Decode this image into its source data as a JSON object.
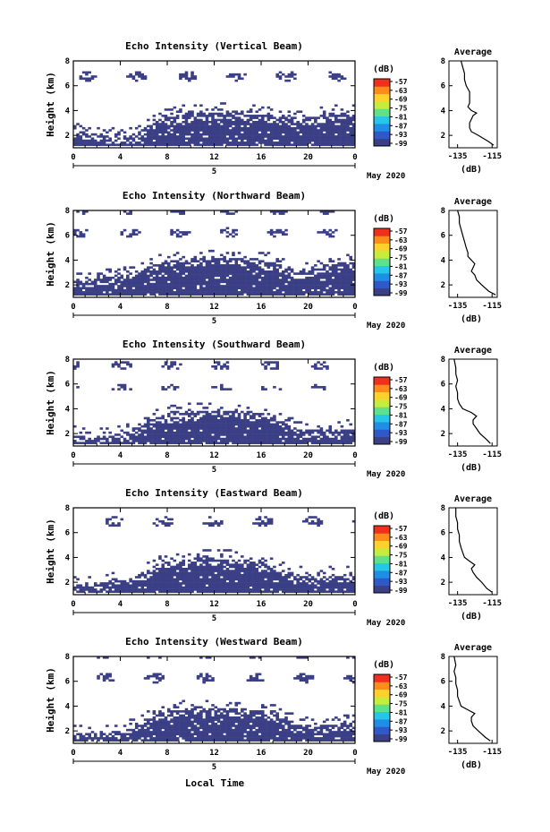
{
  "figure": {
    "xlabel": "Local Time",
    "date_label": "May 2020",
    "day_label": "5",
    "colorbar_unit": "(dB)",
    "profile_title": "Average",
    "profile_xlabel": "(dB)",
    "colors": {
      "echo": "#3b3f85",
      "colormap": [
        "#3b3f85",
        "#2f58c8",
        "#1f8fe6",
        "#25c6e6",
        "#5fe08a",
        "#c7ec3c",
        "#ffd22b",
        "#ff8c1a",
        "#f0301e"
      ]
    }
  },
  "chart_data": [
    {
      "type": "heatmap",
      "title": "Echo Intensity (Vertical Beam)",
      "ylabel": "Height (km)",
      "xlim": [
        0,
        24
      ],
      "ylim": [
        1,
        8
      ],
      "x_ticks": [
        "0",
        "4",
        "8",
        "12",
        "16",
        "20",
        "0"
      ],
      "y_ticks": [
        "2",
        "4",
        "6",
        "8"
      ],
      "colorbar": {
        "label": "(dB)",
        "ticks": [
          "-57",
          "-63",
          "-69",
          "-75",
          "-81",
          "-87",
          "-93",
          "-99"
        ]
      },
      "echo_layer": {
        "base_km": 1.2,
        "top_km": [
          2.4,
          2.2,
          2.0,
          1.9,
          1.9,
          2.1,
          2.6,
          3.2,
          3.5,
          3.7,
          3.8,
          3.8,
          3.9,
          3.9,
          3.8,
          3.8,
          3.7,
          3.5,
          3.4,
          3.3,
          3.4,
          3.6,
          3.8,
          3.9
        ]
      },
      "profile": {
        "title": "Average",
        "xlabel": "(dB)",
        "x_ticks": [
          "-135",
          "-115"
        ],
        "y_ticks": [
          "2",
          "4",
          "6",
          "8"
        ],
        "xlim": [
          -140,
          -112
        ],
        "ylim": [
          1,
          8
        ],
        "height": [
          1.2,
          1.5,
          2.0,
          2.3,
          2.6,
          3.0,
          3.3,
          3.6,
          3.8,
          4.0,
          4.3,
          4.6,
          5.0,
          5.5,
          6.0,
          6.5,
          7.0,
          7.5,
          8.0
        ],
        "value": [
          -114,
          -117,
          -123,
          -127,
          -128,
          -128,
          -127,
          -126,
          -124,
          -127,
          -129,
          -128,
          -128,
          -128,
          -130,
          -131,
          -131,
          -132,
          -133
        ]
      }
    },
    {
      "type": "heatmap",
      "title": "Echo Intensity (Northward Beam)",
      "ylabel": "Height (km)",
      "xlim": [
        0,
        24
      ],
      "ylim": [
        1,
        8
      ],
      "x_ticks": [
        "0",
        "4",
        "8",
        "12",
        "16",
        "20",
        "0"
      ],
      "y_ticks": [
        "2",
        "4",
        "6",
        "8"
      ],
      "colorbar": {
        "label": "(dB)",
        "ticks": [
          "-57",
          "-63",
          "-69",
          "-75",
          "-81",
          "-87",
          "-93",
          "-99"
        ]
      },
      "echo_layer": {
        "base_km": 1.2,
        "top_km": [
          2.3,
          2.4,
          2.6,
          2.7,
          2.8,
          3.0,
          3.4,
          3.7,
          4.0,
          4.1,
          4.1,
          4.2,
          4.2,
          4.2,
          4.1,
          4.1,
          4.0,
          3.8,
          3.4,
          3.1,
          3.2,
          3.4,
          3.6,
          3.8
        ]
      },
      "profile": {
        "title": "Average",
        "xlabel": "(dB)",
        "x_ticks": [
          "-135",
          "-115"
        ],
        "y_ticks": [
          "2",
          "4",
          "6",
          "8"
        ],
        "xlim": [
          -140,
          -112
        ],
        "ylim": [
          1,
          8
        ],
        "height": [
          1.2,
          1.5,
          2.0,
          2.4,
          2.8,
          3.1,
          3.4,
          3.7,
          4.0,
          4.3,
          4.6,
          5.0,
          5.5,
          6.0,
          6.5,
          7.0,
          7.5,
          8.0
        ],
        "value": [
          -113,
          -117,
          -121,
          -124,
          -125,
          -127,
          -126,
          -125,
          -127,
          -129,
          -129,
          -130,
          -131,
          -132,
          -133,
          -134,
          -134,
          -135
        ]
      }
    },
    {
      "type": "heatmap",
      "title": "Echo Intensity (Southward Beam)",
      "ylabel": "Height (km)",
      "xlim": [
        0,
        24
      ],
      "ylim": [
        1,
        8
      ],
      "x_ticks": [
        "0",
        "4",
        "8",
        "12",
        "16",
        "20",
        "0"
      ],
      "y_ticks": [
        "2",
        "4",
        "6",
        "8"
      ],
      "colorbar": {
        "label": "(dB)",
        "ticks": [
          "-57",
          "-63",
          "-69",
          "-75",
          "-81",
          "-87",
          "-93",
          "-99"
        ]
      },
      "echo_layer": {
        "base_km": 1.2,
        "top_km": [
          1.9,
          1.8,
          1.8,
          1.9,
          2.0,
          2.3,
          2.8,
          3.3,
          3.6,
          3.7,
          3.8,
          3.8,
          3.8,
          3.8,
          3.8,
          3.7,
          3.6,
          3.3,
          2.8,
          2.4,
          2.2,
          2.2,
          2.3,
          2.4
        ]
      },
      "profile": {
        "title": "Average",
        "xlabel": "(dB)",
        "x_ticks": [
          "-135",
          "-115"
        ],
        "y_ticks": [
          "2",
          "4",
          "6",
          "8"
        ],
        "xlim": [
          -140,
          -112
        ],
        "ylim": [
          1,
          8
        ],
        "height": [
          1.2,
          1.5,
          2.0,
          2.4,
          2.8,
          3.1,
          3.4,
          3.7,
          4.0,
          4.4,
          4.8,
          5.3,
          5.8,
          6.3,
          6.8,
          7.3,
          8.0
        ],
        "value": [
          -116,
          -118,
          -122,
          -124,
          -126,
          -126,
          -124,
          -127,
          -132,
          -134,
          -135,
          -135,
          -136,
          -135,
          -136,
          -136,
          -137
        ]
      }
    },
    {
      "type": "heatmap",
      "title": "Echo Intensity (Eastward Beam)",
      "ylabel": "Height (km)",
      "xlim": [
        0,
        24
      ],
      "ylim": [
        1,
        8
      ],
      "x_ticks": [
        "0",
        "4",
        "8",
        "12",
        "16",
        "20",
        "0"
      ],
      "y_ticks": [
        "2",
        "4",
        "6",
        "8"
      ],
      "colorbar": {
        "label": "(dB)",
        "ticks": [
          "-57",
          "-63",
          "-69",
          "-75",
          "-81",
          "-87",
          "-93",
          "-99"
        ]
      },
      "echo_layer": {
        "base_km": 1.2,
        "top_km": [
          1.8,
          1.9,
          2.0,
          2.1,
          2.2,
          2.4,
          2.8,
          3.4,
          3.7,
          3.8,
          3.9,
          4.0,
          4.0,
          3.9,
          3.9,
          3.8,
          3.6,
          3.3,
          2.9,
          2.6,
          2.5,
          2.5,
          2.6,
          2.6
        ]
      },
      "profile": {
        "title": "Average",
        "xlabel": "(dB)",
        "x_ticks": [
          "-135",
          "-115"
        ],
        "y_ticks": [
          "2",
          "4",
          "6",
          "8"
        ],
        "xlim": [
          -140,
          -112
        ],
        "ylim": [
          1,
          8
        ],
        "height": [
          1.2,
          1.5,
          2.0,
          2.4,
          2.8,
          3.1,
          3.4,
          3.7,
          4.0,
          4.4,
          4.8,
          5.3,
          5.8,
          6.3,
          6.8,
          7.3,
          8.0
        ],
        "value": [
          -115,
          -118,
          -121,
          -124,
          -126,
          -127,
          -125,
          -128,
          -131,
          -132,
          -133,
          -134,
          -134,
          -135,
          -135,
          -136,
          -136
        ]
      }
    },
    {
      "type": "heatmap",
      "title": "Echo Intensity (Westward Beam)",
      "ylabel": "Height (km)",
      "xlim": [
        0,
        24
      ],
      "ylim": [
        1,
        8
      ],
      "x_ticks": [
        "0",
        "4",
        "8",
        "12",
        "16",
        "20",
        "0"
      ],
      "y_ticks": [
        "2",
        "4",
        "6",
        "8"
      ],
      "colorbar": {
        "label": "(dB)",
        "ticks": [
          "-57",
          "-63",
          "-69",
          "-75",
          "-81",
          "-87",
          "-93",
          "-99"
        ]
      },
      "echo_layer": {
        "base_km": 1.2,
        "top_km": [
          1.9,
          1.8,
          1.8,
          1.9,
          2.0,
          2.3,
          2.8,
          3.3,
          3.6,
          3.7,
          3.8,
          3.8,
          3.9,
          3.9,
          3.8,
          3.7,
          3.6,
          3.4,
          3.0,
          2.6,
          2.4,
          2.4,
          2.5,
          2.6
        ]
      },
      "profile": {
        "title": "Average",
        "xlabel": "(dB)",
        "x_ticks": [
          "-135",
          "-115"
        ],
        "y_ticks": [
          "2",
          "4",
          "6",
          "8"
        ],
        "xlim": [
          -140,
          -112
        ],
        "ylim": [
          1,
          8
        ],
        "height": [
          1.2,
          1.5,
          2.0,
          2.4,
          2.8,
          3.1,
          3.4,
          3.7,
          4.0,
          4.4,
          4.8,
          5.3,
          5.8,
          6.3,
          6.8,
          7.3,
          8.0
        ],
        "value": [
          -116,
          -119,
          -123,
          -126,
          -127,
          -127,
          -125,
          -129,
          -133,
          -134,
          -135,
          -135,
          -136,
          -136,
          -137,
          -136,
          -137
        ]
      }
    }
  ]
}
